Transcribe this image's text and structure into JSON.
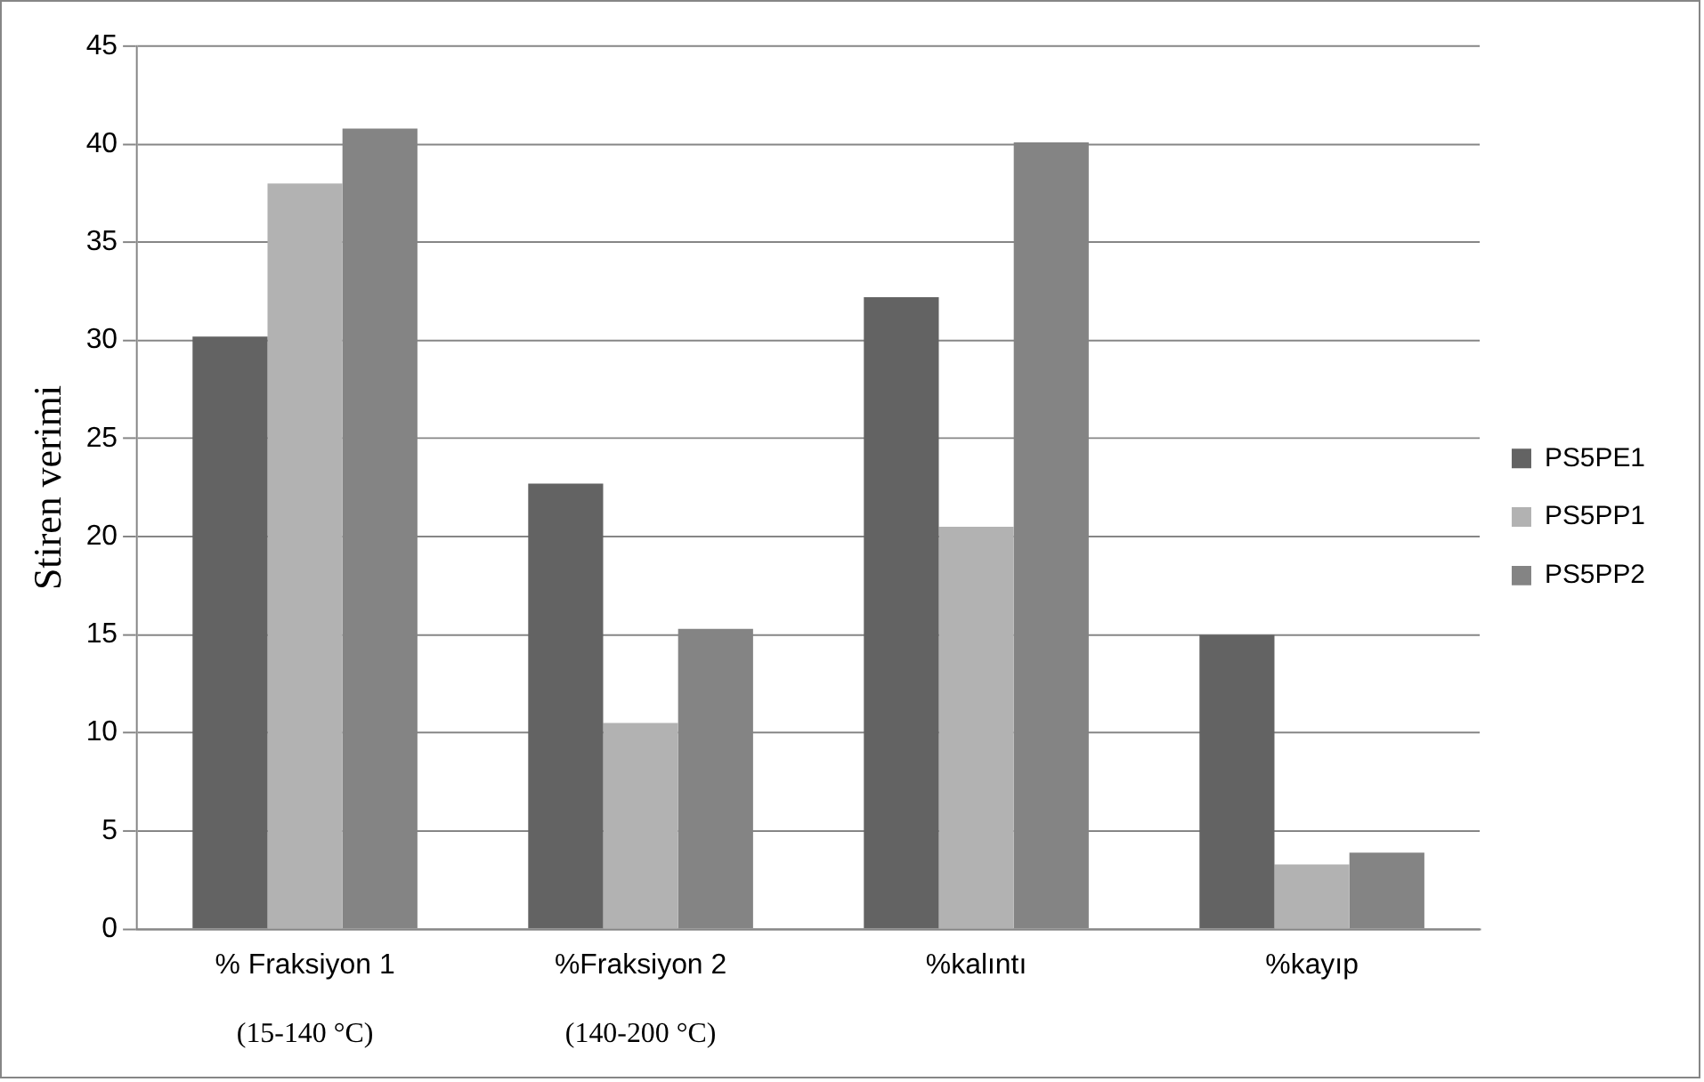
{
  "chart_data": {
    "type": "bar",
    "ylabel": "Stiren verimi",
    "categories": [
      "% Fraksiyon 1",
      "%Fraksiyon 2",
      "%kalıntı",
      "%kayıp"
    ],
    "series": [
      {
        "name": "PS5PE1",
        "color": "#636363",
        "values": [
          30.2,
          22.7,
          32.2,
          15.0
        ]
      },
      {
        "name": "PS5PP1",
        "color": "#b2b2b2",
        "values": [
          38.0,
          10.5,
          20.5,
          3.3
        ]
      },
      {
        "name": "PS5PP2",
        "color": "#848484",
        "values": [
          40.8,
          15.3,
          40.1,
          3.9
        ]
      }
    ],
    "ylim": [
      0,
      45
    ],
    "yticks": [
      0,
      5,
      10,
      15,
      20,
      25,
      30,
      35,
      40,
      45
    ],
    "grid": "y",
    "legend": "right",
    "annotations": [
      "(15-140 °C)",
      "(140-200 °C)"
    ]
  }
}
